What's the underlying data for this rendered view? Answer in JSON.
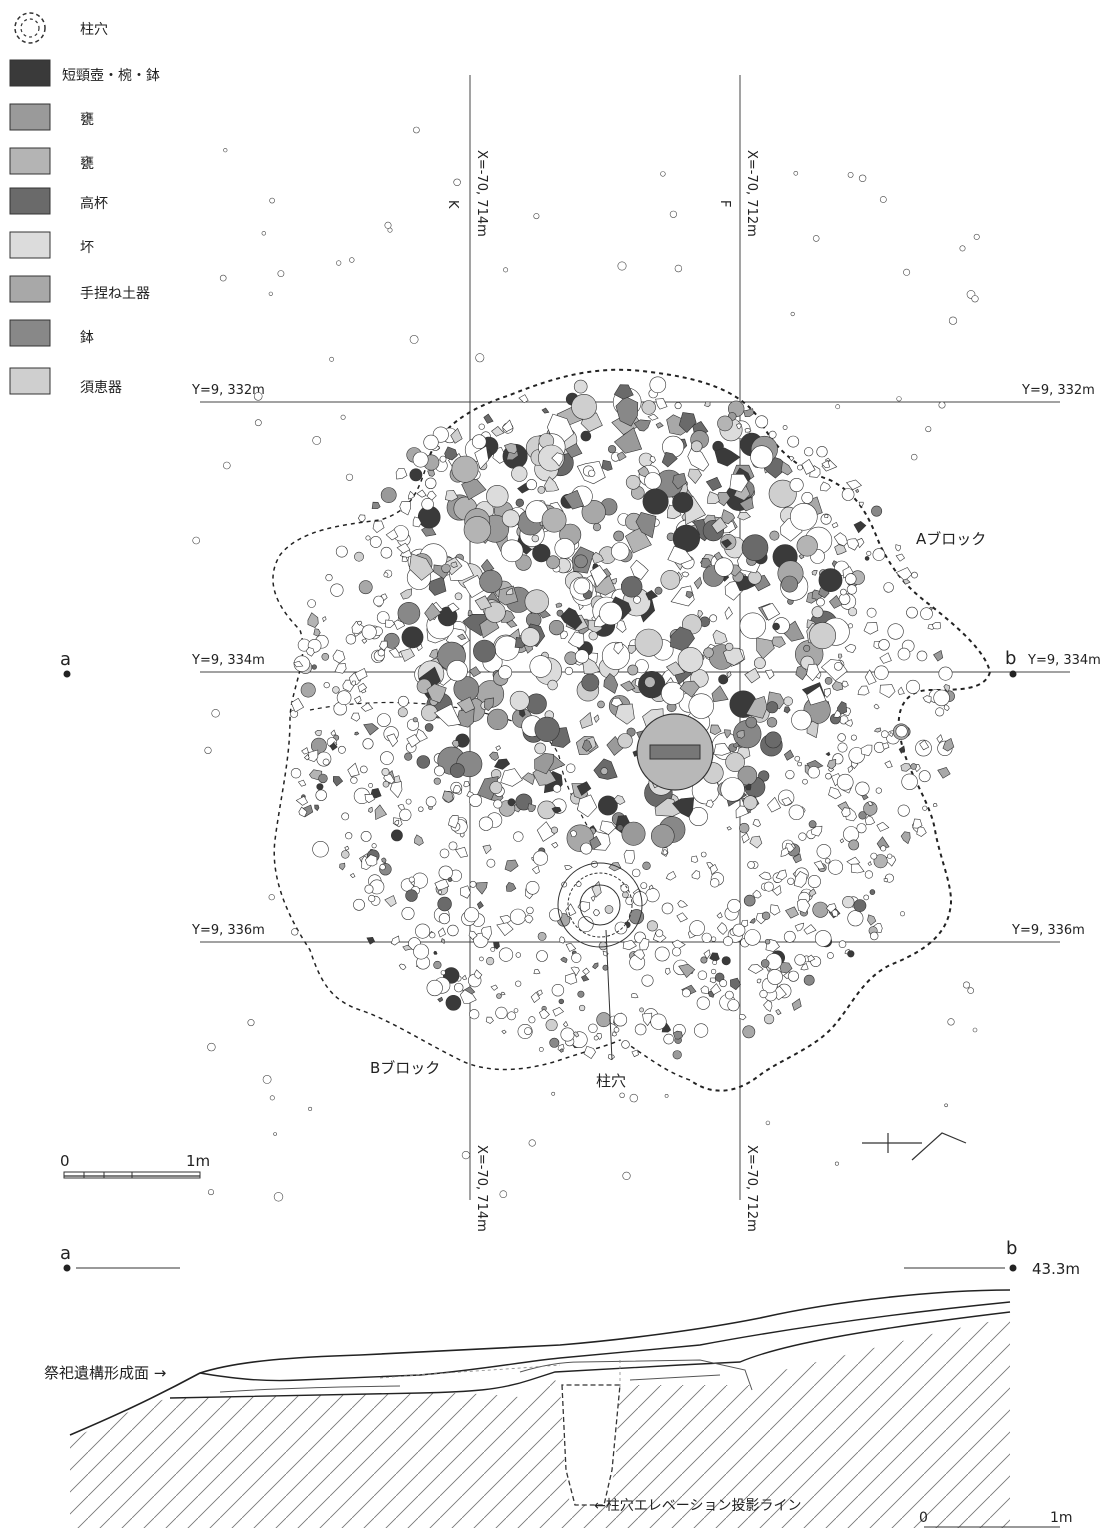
{
  "legend": {
    "items": [
      {
        "label": "柱穴",
        "swatch": "dashed-circle",
        "color": "#ffffff"
      },
      {
        "label": "短頸壺・椀・鉢",
        "swatch": "fill",
        "color": "#3a3a3a"
      },
      {
        "label": "甕",
        "swatch": "fill",
        "color": "#9a9a9a"
      },
      {
        "label": "甕",
        "swatch": "fill",
        "color": "#b4b4b4"
      },
      {
        "label": "高杯",
        "swatch": "fill",
        "color": "#6a6a6a"
      },
      {
        "label": "坏",
        "swatch": "fill",
        "color": "#dcdcdc"
      },
      {
        "label": "手捏ね土器",
        "swatch": "fill",
        "color": "#a8a8a8"
      },
      {
        "label": "鉢",
        "swatch": "fill",
        "color": "#888888"
      },
      {
        "label": "須恵器",
        "swatch": "fill",
        "color": "#cfcfcf"
      }
    ]
  },
  "grid": {
    "x_left_top": "X=-70, 714m",
    "x_right_top": "X=-70, 712m",
    "x_left_bottom": "X=-70, 714m",
    "x_right_bottom": "X=-70, 712m",
    "letter_k": "K",
    "letter_f": "F",
    "y332_left": "Y=9, 332m",
    "y332_right": "Y=9, 332m",
    "y334_left": "Y=9, 334m",
    "y334_right": "Y=9, 334m",
    "y336_left": "Y=9, 336m",
    "y336_right": "Y=9, 336m"
  },
  "labels": {
    "block_a": "Aブロック",
    "block_b": "Bブロック",
    "pillar_hole": "柱穴",
    "point_a": "a",
    "point_b": "b"
  },
  "scale_plan": {
    "zero": "0",
    "one": "1m"
  },
  "section": {
    "point_a": "a",
    "point_b": "b",
    "elevation": "43.3m",
    "surface_label": "祭祀遺構形成面 →",
    "projection_label": "←柱穴エレベーション投影ライン",
    "scale_zero": "0",
    "scale_one": "1m"
  },
  "colors": {
    "line": "#333333",
    "c1": "#3a3a3a",
    "c2": "#9a9a9a",
    "c3": "#b4b4b4",
    "c4": "#6a6a6a",
    "c5": "#dcdcdc",
    "c6": "#a8a8a8",
    "c7": "#888888",
    "c8": "#cfcfcf"
  }
}
